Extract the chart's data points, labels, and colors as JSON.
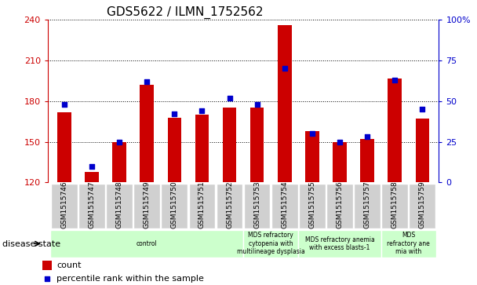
{
  "title": "GDS5622 / ILMN_1752562",
  "samples": [
    "GSM1515746",
    "GSM1515747",
    "GSM1515748",
    "GSM1515749",
    "GSM1515750",
    "GSM1515751",
    "GSM1515752",
    "GSM1515753",
    "GSM1515754",
    "GSM1515755",
    "GSM1515756",
    "GSM1515757",
    "GSM1515758",
    "GSM1515759"
  ],
  "counts": [
    172,
    128,
    150,
    192,
    168,
    170,
    175,
    175,
    236,
    158,
    150,
    152,
    197,
    167
  ],
  "percentiles": [
    48,
    10,
    25,
    62,
    42,
    44,
    52,
    48,
    70,
    30,
    25,
    28,
    63,
    45
  ],
  "ylim_left": [
    120,
    240
  ],
  "ylim_right": [
    0,
    100
  ],
  "yticks_left": [
    120,
    150,
    180,
    210,
    240
  ],
  "yticks_right": [
    0,
    25,
    50,
    75,
    100
  ],
  "bar_color": "#cc0000",
  "dot_color": "#0000cc",
  "dot_size": 25,
  "bar_width": 0.5,
  "left_axis_color": "#cc0000",
  "right_axis_color": "#0000cc",
  "sample_box_color": "#d0d0d0",
  "disease_groups": [
    {
      "label": "control",
      "start": 0,
      "end": 7,
      "color": "#ccffcc"
    },
    {
      "label": "MDS refractory\ncytopenia with\nmultilineage dysplasia",
      "start": 7,
      "end": 9,
      "color": "#ccffcc"
    },
    {
      "label": "MDS refractory anemia\nwith excess blasts-1",
      "start": 9,
      "end": 12,
      "color": "#ccffcc"
    },
    {
      "label": "MDS\nrefractory ane\nmia with",
      "start": 12,
      "end": 14,
      "color": "#ccffcc"
    }
  ],
  "xlabel_disease": "disease state",
  "legend_count": "count",
  "legend_percentile": "percentile rank within the sample"
}
